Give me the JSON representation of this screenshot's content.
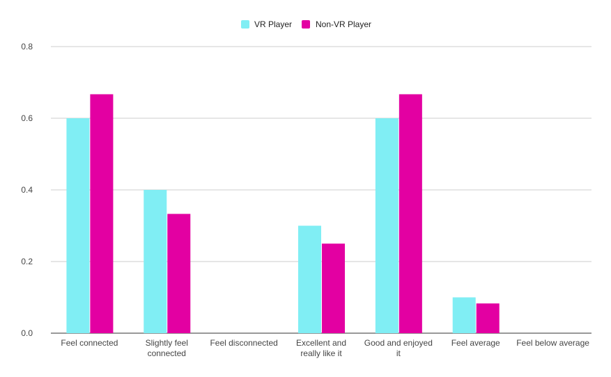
{
  "chart_data": {
    "type": "bar",
    "categories": [
      [
        "Feel connected"
      ],
      [
        "Slightly feel",
        "connected"
      ],
      [
        "Feel disconnected"
      ],
      [
        "Excellent and",
        "really like it"
      ],
      [
        "Good and enjoyed",
        "it"
      ],
      [
        "Feel average"
      ],
      [
        "Feel below average"
      ]
    ],
    "series": [
      {
        "name": "VR Player",
        "color": "#80eef4",
        "values": [
          0.6,
          0.4,
          0,
          0.3,
          0.6,
          0.1,
          0
        ]
      },
      {
        "name": "Non-VR Player",
        "color": "#e300a2",
        "values": [
          0.667,
          0.333,
          0,
          0.25,
          0.667,
          0.083,
          0
        ]
      }
    ],
    "ylim": [
      0,
      0.8
    ],
    "yticks": [
      "0.0",
      "0.2",
      "0.4",
      "0.6",
      "0.8"
    ],
    "grid": true,
    "legend_position": "top-center"
  }
}
